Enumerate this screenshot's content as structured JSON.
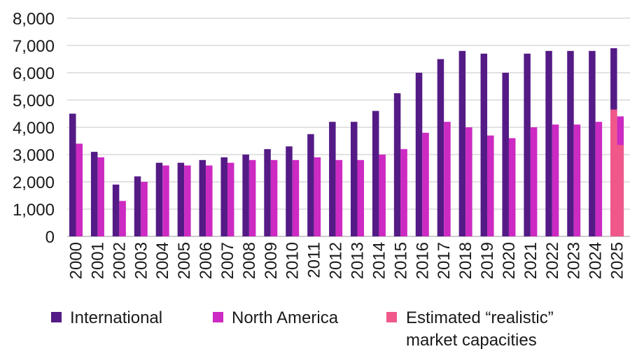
{
  "chart_data": {
    "type": "bar",
    "title": "",
    "xlabel": "",
    "ylabel": "",
    "ylim": [
      0,
      8000
    ],
    "yticks": [
      0,
      1000,
      2000,
      3000,
      4000,
      5000,
      6000,
      7000,
      8000
    ],
    "ytick_labels": [
      "0",
      "1,000",
      "2,000",
      "3,000",
      "4,000",
      "5,000",
      "6,000",
      "7,000",
      "8,000"
    ],
    "grid": "horizontal",
    "legend_position": "bottom",
    "categories": [
      "2000",
      "2001",
      "2002",
      "2003",
      "2004",
      "2005",
      "2006",
      "2007",
      "2008",
      "2009",
      "2010",
      "2011",
      "2012",
      "2013",
      "2014",
      "2015",
      "2016",
      "2017",
      "2018",
      "2019",
      "2020",
      "2021",
      "2022",
      "2023",
      "2024",
      "2025"
    ],
    "series": [
      {
        "name": "International",
        "color": "#541b86",
        "values": [
          4500,
          3100,
          1900,
          2200,
          2700,
          2700,
          2800,
          2900,
          3000,
          3200,
          3300,
          3750,
          4200,
          4200,
          4600,
          5250,
          6000,
          6500,
          6800,
          6700,
          6000,
          6700,
          6800,
          6800,
          6800,
          6900
        ]
      },
      {
        "name": "North America",
        "color": "#cc2ac2",
        "values": [
          3400,
          2900,
          1300,
          2000,
          2600,
          2600,
          2600,
          2700,
          2800,
          2800,
          2800,
          2900,
          2800,
          2800,
          3000,
          3200,
          3800,
          4200,
          4000,
          3700,
          3600,
          4000,
          4100,
          4100,
          4200,
          4400
        ]
      }
    ],
    "estimated": {
      "name": "Estimated “realistic” market capacities",
      "legend_lines": [
        "Estimated “realistic”",
        "market capacities"
      ],
      "color": "#f0588a",
      "category": "2025",
      "values": {
        "International": 4650,
        "North America": 3350
      }
    }
  }
}
